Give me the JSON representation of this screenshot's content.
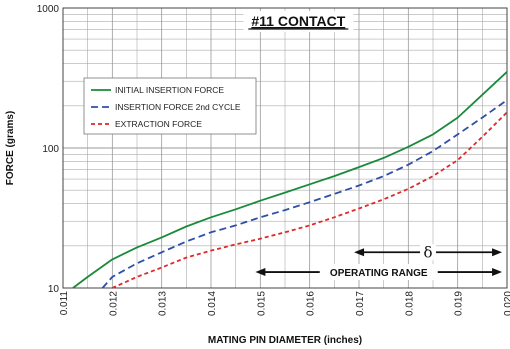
{
  "chart_data": {
    "type": "line",
    "title": "#11 CONTACT",
    "xlabel": "MATING PIN DIAMETER (inches)",
    "ylabel": "FORCE (grams)",
    "xlim": [
      0.011,
      0.02
    ],
    "ylim": [
      10,
      1000
    ],
    "y_scale": "log",
    "grid": true,
    "legend_position": "upper-left",
    "x_ticks": [
      "0.011",
      "0.012",
      "0.013",
      "0.014",
      "0.015",
      "0.016",
      "0.017",
      "0.018",
      "0.019",
      "0.020"
    ],
    "y_ticks": [
      "10",
      "100",
      "1000"
    ],
    "series": [
      {
        "name": "INITIAL INSERTION FORCE",
        "color": "#1a8a3a",
        "dash": "solid",
        "x": [
          0.0112,
          0.0115,
          0.012,
          0.0125,
          0.013,
          0.0135,
          0.014,
          0.0145,
          0.015,
          0.0155,
          0.016,
          0.0165,
          0.017,
          0.0175,
          0.018,
          0.0185,
          0.019,
          0.0195,
          0.02
        ],
        "y": [
          10,
          12,
          16,
          19.5,
          23,
          27.5,
          32,
          36.5,
          42,
          48,
          55,
          63,
          73,
          85,
          102,
          125,
          165,
          240,
          350
        ]
      },
      {
        "name": "INSERTION FORCE 2nd CYCLE",
        "color": "#2f4fa8",
        "dash": "dashed",
        "x": [
          0.0118,
          0.012,
          0.0125,
          0.013,
          0.0135,
          0.014,
          0.0145,
          0.015,
          0.0155,
          0.016,
          0.0165,
          0.017,
          0.0175,
          0.018,
          0.0185,
          0.019,
          0.0195,
          0.02
        ],
        "y": [
          10,
          12,
          15,
          18,
          21.5,
          25,
          28,
          32,
          36,
          41,
          47,
          54,
          63,
          76,
          95,
          125,
          165,
          220
        ]
      },
      {
        "name": "EXTRACTION FORCE",
        "color": "#e02828",
        "dash": "dotted",
        "x": [
          0.012,
          0.0125,
          0.013,
          0.0135,
          0.014,
          0.0145,
          0.015,
          0.0155,
          0.016,
          0.0165,
          0.017,
          0.0175,
          0.018,
          0.0185,
          0.019,
          0.0195,
          0.02
        ],
        "y": [
          10,
          12,
          14,
          16.5,
          18.5,
          20.5,
          22.5,
          25,
          28,
          32,
          37,
          43,
          51,
          63,
          82,
          120,
          180
        ]
      }
    ],
    "annotations": [
      {
        "label": "δ",
        "x_start": 0.0169,
        "x_end": 0.0199,
        "y": 18
      },
      {
        "label": "OPERATING RANGE",
        "x_start": 0.0149,
        "x_end": 0.0199,
        "y": 13
      }
    ]
  }
}
